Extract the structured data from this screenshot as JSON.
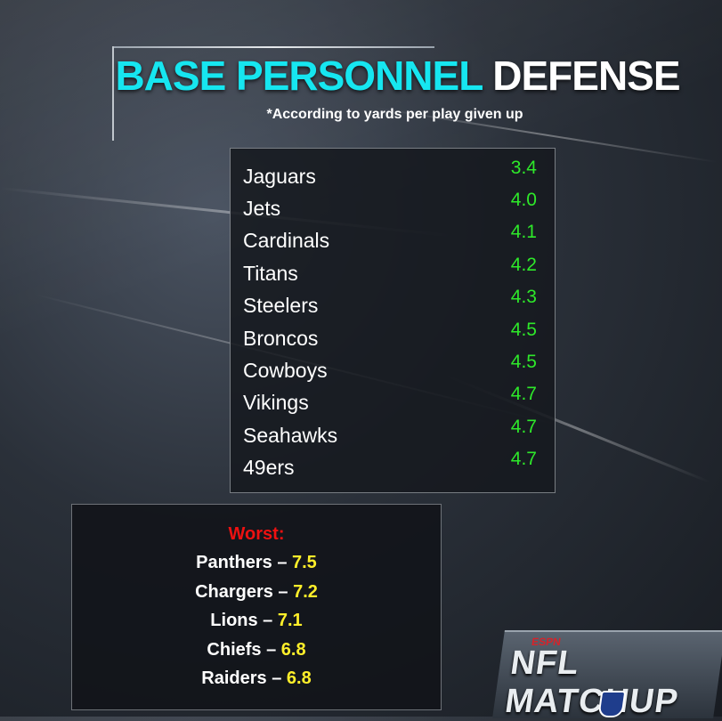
{
  "title": {
    "part1": "BASE PERSONNEL",
    "part2": "DEFENSE"
  },
  "subtitle": "*According to yards per play given up",
  "top_list": [
    {
      "team": "Jaguars",
      "value": "3.4"
    },
    {
      "team": "Jets",
      "value": "4.0"
    },
    {
      "team": "Cardinals",
      "value": "4.1"
    },
    {
      "team": "Titans",
      "value": "4.2"
    },
    {
      "team": "Steelers",
      "value": "4.3"
    },
    {
      "team": "Broncos",
      "value": "4.5"
    },
    {
      "team": "Cowboys",
      "value": "4.5"
    },
    {
      "team": "Vikings",
      "value": "4.7"
    },
    {
      "team": "Seahawks",
      "value": "4.7"
    },
    {
      "team": "49ers",
      "value": "4.7"
    }
  ],
  "worst": {
    "label": "Worst:",
    "items": [
      {
        "team": "Panthers – ",
        "value": "7.5"
      },
      {
        "team": "Chargers – ",
        "value": "7.2"
      },
      {
        "team": "Lions – ",
        "value": "7.1"
      },
      {
        "team": "Chiefs – ",
        "value": "6.8"
      },
      {
        "team": "Raiders – ",
        "value": "6.8"
      }
    ]
  },
  "logo": {
    "espn": "ESPN",
    "text": "NFL MATCHUP",
    "badge": "NFL"
  },
  "colors": {
    "title_accent": "#16e6f0",
    "values_green": "#2ee82a",
    "worst_red": "#ee1111",
    "worst_yellow": "#ffef2a"
  }
}
